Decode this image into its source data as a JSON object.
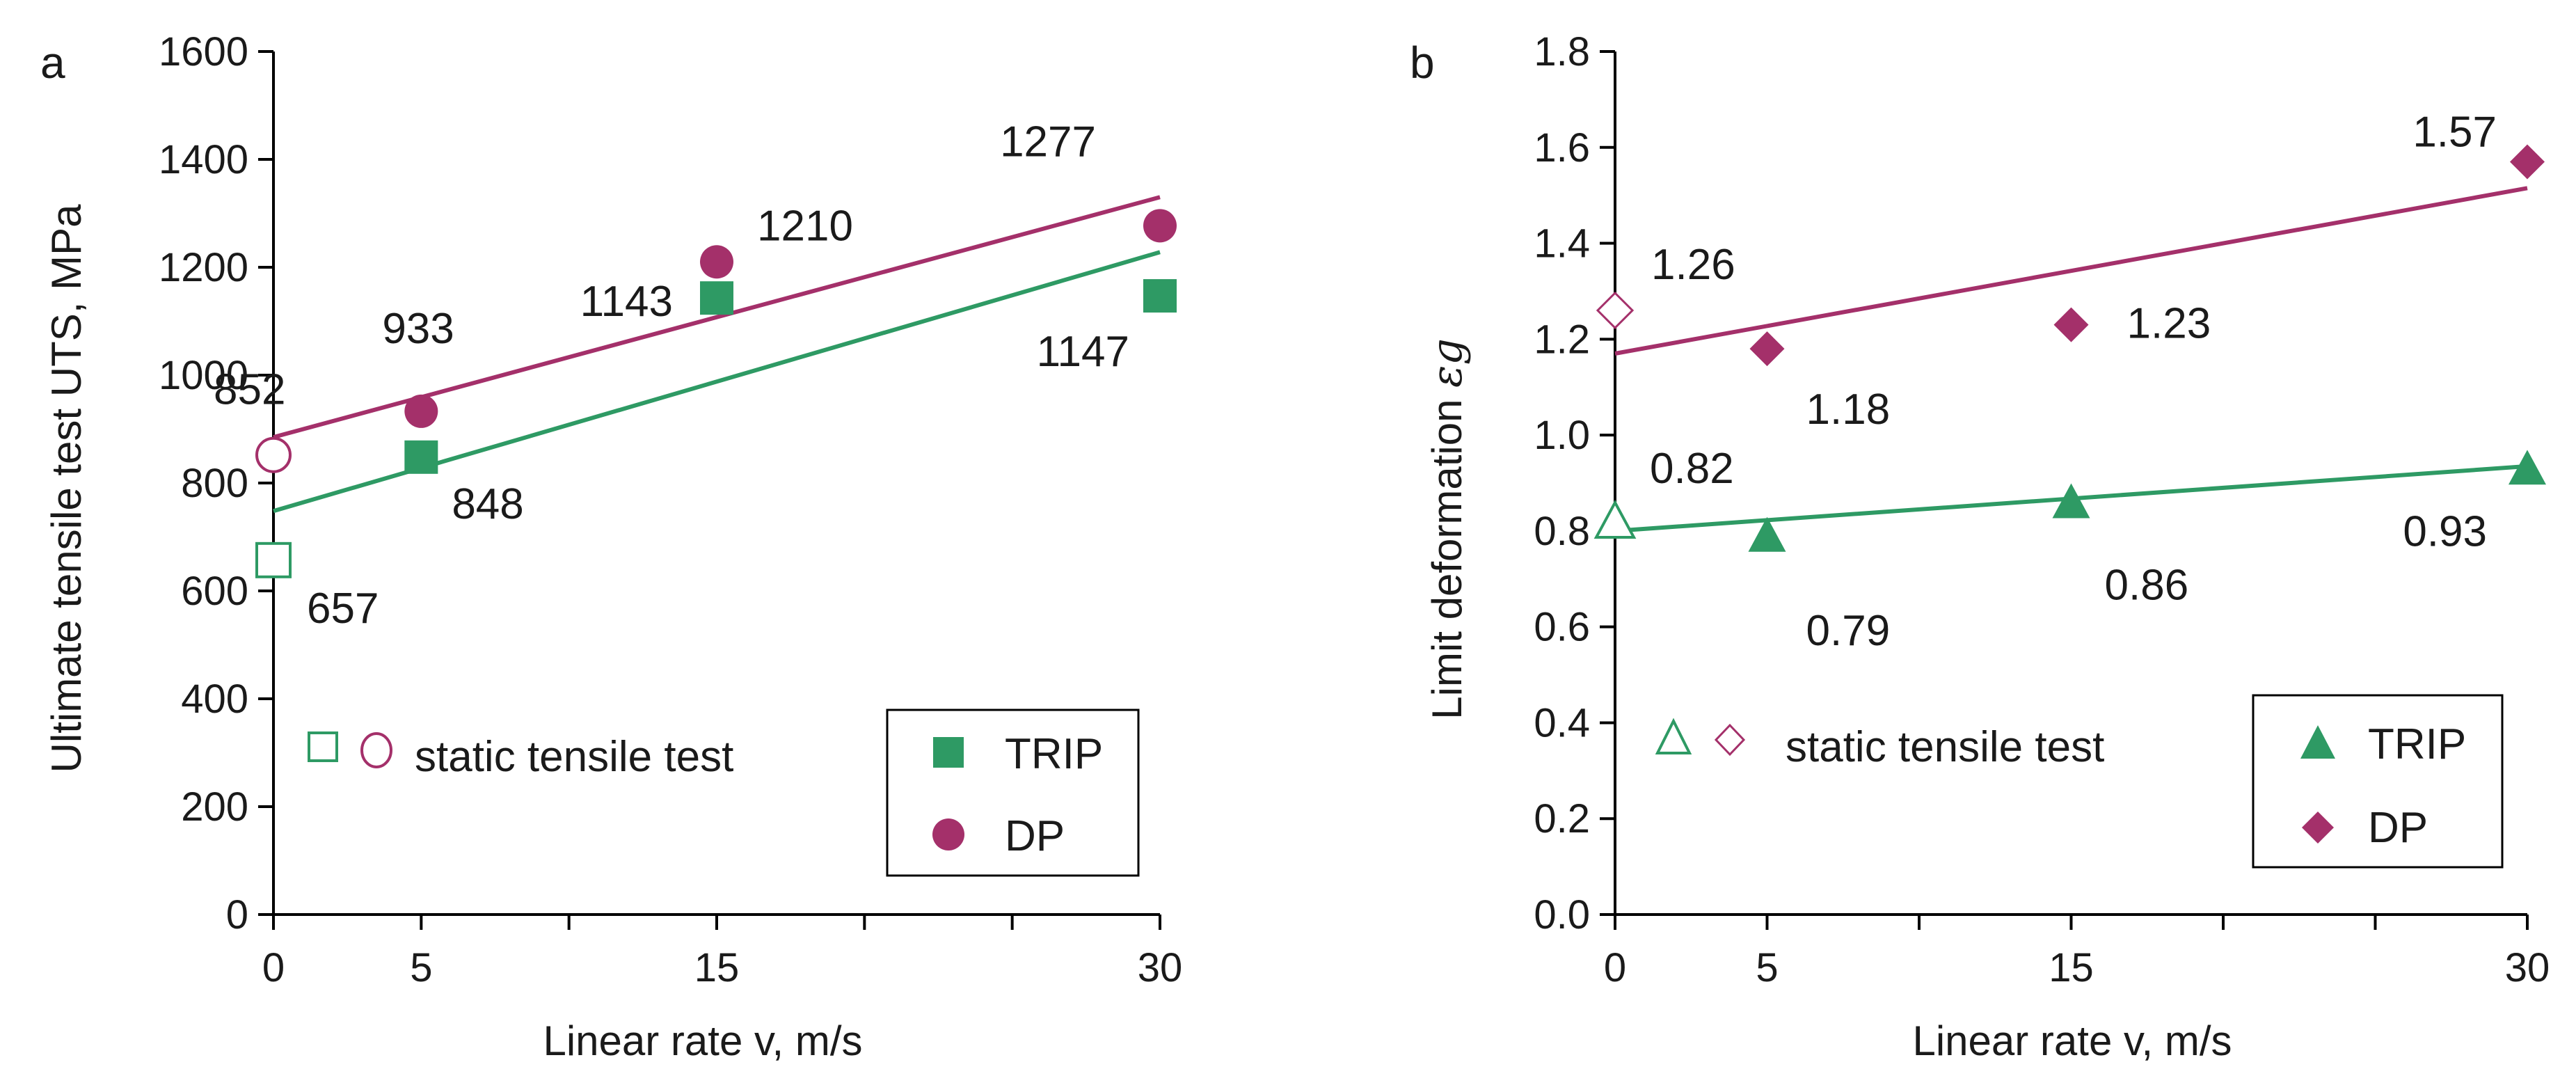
{
  "colors": {
    "trip": "#2e9a64",
    "dp": "#a4306a",
    "axis": "#000000",
    "text": "#1a1a1a"
  },
  "chart_data": [
    {
      "type": "scatter",
      "panel_label": "a",
      "xlabel": "Linear rate  v,  m/s",
      "ylabel": "Ultimate tensile test UTS, MPa",
      "xlim": [
        0,
        30
      ],
      "ylim": [
        0,
        1600
      ],
      "xticks": [
        0,
        5,
        10,
        15,
        20,
        25,
        30
      ],
      "xtick_labels": [
        "0",
        "5",
        "",
        "15",
        "",
        "",
        "30"
      ],
      "yticks": [
        0,
        200,
        400,
        600,
        800,
        1000,
        1200,
        1400,
        1600
      ],
      "ytick_labels": [
        "0",
        "200",
        "400",
        "600",
        "800",
        "1000",
        "1200",
        "1400",
        "1600"
      ],
      "series": [
        {
          "name": "TRIP",
          "marker": "square",
          "color": "trip",
          "x": [
            0,
            5,
            15,
            30
          ],
          "y": [
            657,
            848,
            1143,
            1147
          ],
          "hollow": [
            true,
            false,
            false,
            false
          ],
          "labels": [
            "657",
            "848",
            "1143",
            "1147"
          ],
          "trend": [
            [
              0,
              748
            ],
            [
              30,
              1228
            ]
          ]
        },
        {
          "name": "DP",
          "marker": "circle",
          "color": "dp",
          "x": [
            0,
            5,
            15,
            30
          ],
          "y": [
            852,
            933,
            1210,
            1277
          ],
          "hollow": [
            true,
            false,
            false,
            false
          ],
          "labels": [
            "852",
            "933",
            "1210",
            "1277"
          ],
          "trend": [
            [
              0,
              885
            ],
            [
              30,
              1330
            ]
          ]
        }
      ],
      "static_legend": "static tensile test",
      "legend": [
        "TRIP",
        "DP"
      ]
    },
    {
      "type": "scatter",
      "panel_label": "b",
      "xlabel": "Linear rate  v,  m/s",
      "ylabel": "Limit deformation",
      "ylabel_symbol": "εg",
      "xlim": [
        0,
        30
      ],
      "ylim": [
        0,
        1.8
      ],
      "xticks": [
        0,
        5,
        10,
        15,
        20,
        25,
        30
      ],
      "xtick_labels": [
        "0",
        "5",
        "",
        "15",
        "",
        "",
        "30"
      ],
      "yticks": [
        0,
        0.2,
        0.4,
        0.6,
        0.8,
        1.0,
        1.2,
        1.4,
        1.6,
        1.8
      ],
      "ytick_labels": [
        "0.0",
        "0.2",
        "0.4",
        "0.6",
        "0.8",
        "1.0",
        "1.2",
        "1.4",
        "1.6",
        "1.8"
      ],
      "series": [
        {
          "name": "TRIP",
          "marker": "triangle",
          "color": "trip",
          "x": [
            0,
            5,
            15,
            30
          ],
          "y": [
            0.82,
            0.79,
            0.86,
            0.93
          ],
          "hollow": [
            true,
            false,
            false,
            false
          ],
          "labels": [
            "0.82",
            "0.79",
            "0.86",
            "0.93"
          ],
          "trend": [
            [
              0,
              0.8
            ],
            [
              30,
              0.935
            ]
          ]
        },
        {
          "name": "DP",
          "marker": "diamond",
          "color": "dp",
          "x": [
            0,
            5,
            15,
            30
          ],
          "y": [
            1.26,
            1.18,
            1.23,
            1.57
          ],
          "hollow": [
            true,
            false,
            false,
            false
          ],
          "labels": [
            "1.26",
            "1.18",
            "1.23",
            "1.57"
          ],
          "trend": [
            [
              0,
              1.17
            ],
            [
              30,
              1.515
            ]
          ]
        }
      ],
      "static_legend": "static tensile test",
      "legend": [
        "TRIP",
        "DP"
      ]
    }
  ]
}
